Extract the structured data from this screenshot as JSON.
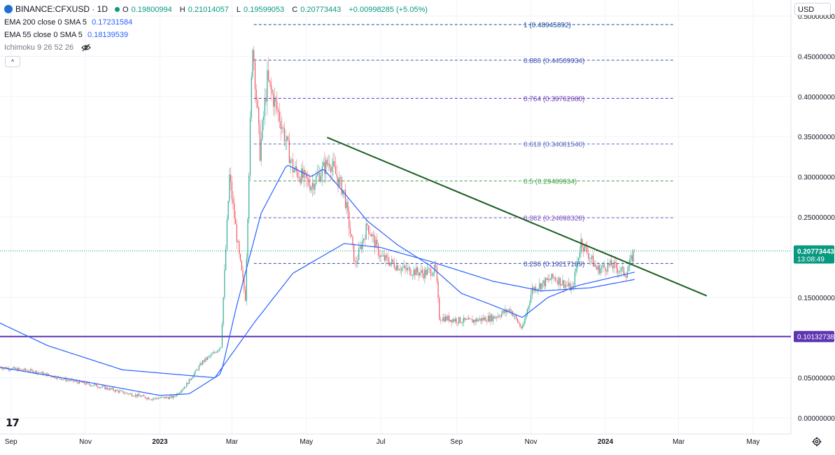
{
  "header": {
    "symbol": "BINANCE:CFXUSD · 1D",
    "open_label": "O",
    "open": "0.19800994",
    "high_label": "H",
    "high": "0.21014057",
    "low_label": "L",
    "low": "0.19599053",
    "close_label": "C",
    "close": "0.20773443",
    "change": "+0.00998285 (+5.05%)"
  },
  "indicators": [
    {
      "label": "EMA 200 close 0 SMA 5",
      "value": "0.17231584"
    },
    {
      "label": "EMA 55 close 0 SMA 5",
      "value": "0.18139539"
    },
    {
      "label": "Ichimoku 9 26 52 26",
      "value": ""
    }
  ],
  "toolbar": {
    "collapse_label": "^",
    "currency": "USD",
    "logo": "17"
  },
  "colors": {
    "up": "#089981",
    "down": "#f23645",
    "ma": "#2962ff",
    "trendline": "#1b5e20",
    "support": "#5e35b1",
    "axis_text": "#131722"
  },
  "chart_data": {
    "type": "candlestick",
    "symbol": "BINANCE:CFXUSD",
    "interval": "1D",
    "x_range": [
      "2022-08-23",
      "2024-06-01"
    ],
    "y_range": [
      -0.02,
      0.52
    ],
    "y_ticks": [
      "0.50000000",
      "0.45000000",
      "0.40000000",
      "0.35000000",
      "0.30000000",
      "0.25000000",
      "0.15000000",
      "0.05000000",
      "0.00000000"
    ],
    "y_tick_values": [
      0.5,
      0.45,
      0.4,
      0.35,
      0.3,
      0.25,
      0.15,
      0.05,
      0.0
    ],
    "x_ticks": [
      {
        "label": "Sep",
        "date": "2022-09-01"
      },
      {
        "label": "Nov",
        "date": "2022-11-01"
      },
      {
        "label": "2023",
        "date": "2023-01-01"
      },
      {
        "label": "Mar",
        "date": "2023-03-01"
      },
      {
        "label": "May",
        "date": "2023-05-01"
      },
      {
        "label": "Jul",
        "date": "2023-07-01"
      },
      {
        "label": "Sep",
        "date": "2023-09-01"
      },
      {
        "label": "Nov",
        "date": "2023-11-01"
      },
      {
        "label": "2024",
        "date": "2024-01-01"
      },
      {
        "label": "Mar",
        "date": "2024-03-01"
      },
      {
        "label": "May",
        "date": "2024-05-01"
      }
    ],
    "price_path": [
      [
        "2022-08-23",
        0.063
      ],
      [
        "2022-09-20",
        0.058
      ],
      [
        "2022-10-15",
        0.048
      ],
      [
        "2022-11-10",
        0.04
      ],
      [
        "2022-12-01",
        0.032
      ],
      [
        "2022-12-25",
        0.024
      ],
      [
        "2023-01-12",
        0.026
      ],
      [
        "2023-01-22",
        0.04
      ],
      [
        "2023-02-05",
        0.07
      ],
      [
        "2023-02-14",
        0.08
      ],
      [
        "2023-02-20",
        0.09
      ],
      [
        "2023-02-27",
        0.3
      ],
      [
        "2023-03-07",
        0.2
      ],
      [
        "2023-03-12",
        0.15
      ],
      [
        "2023-03-18",
        0.47
      ],
      [
        "2023-03-24",
        0.33
      ],
      [
        "2023-03-30",
        0.42
      ],
      [
        "2023-04-10",
        0.37
      ],
      [
        "2023-04-20",
        0.31
      ],
      [
        "2023-05-05",
        0.29
      ],
      [
        "2023-05-20",
        0.32
      ],
      [
        "2023-06-01",
        0.28
      ],
      [
        "2023-06-10",
        0.19
      ],
      [
        "2023-06-20",
        0.24
      ],
      [
        "2023-07-01",
        0.2
      ],
      [
        "2023-07-20",
        0.185
      ],
      [
        "2023-08-05",
        0.18
      ],
      [
        "2023-08-15",
        0.185
      ],
      [
        "2023-08-18",
        0.125
      ],
      [
        "2023-09-10",
        0.12
      ],
      [
        "2023-10-01",
        0.125
      ],
      [
        "2023-10-15",
        0.135
      ],
      [
        "2023-10-25",
        0.11
      ],
      [
        "2023-11-02",
        0.16
      ],
      [
        "2023-11-20",
        0.175
      ],
      [
        "2023-12-05",
        0.16
      ],
      [
        "2023-12-12",
        0.22
      ],
      [
        "2023-12-25",
        0.185
      ],
      [
        "2024-01-06",
        0.19
      ],
      [
        "2024-01-18",
        0.18
      ],
      [
        "2024-01-25",
        0.2077
      ]
    ],
    "ema55": [
      [
        "2022-08-23",
        0.063
      ],
      [
        "2022-11-01",
        0.045
      ],
      [
        "2023-01-01",
        0.028
      ],
      [
        "2023-01-25",
        0.03
      ],
      [
        "2023-02-20",
        0.055
      ],
      [
        "2023-03-05",
        0.14
      ],
      [
        "2023-03-25",
        0.255
      ],
      [
        "2023-04-15",
        0.315
      ],
      [
        "2023-05-05",
        0.3
      ],
      [
        "2023-05-15",
        0.31
      ],
      [
        "2023-06-01",
        0.28
      ],
      [
        "2023-06-20",
        0.245
      ],
      [
        "2023-07-15",
        0.215
      ],
      [
        "2023-08-10",
        0.19
      ],
      [
        "2023-09-05",
        0.155
      ],
      [
        "2023-10-01",
        0.14
      ],
      [
        "2023-10-25",
        0.125
      ],
      [
        "2023-11-15",
        0.15
      ],
      [
        "2023-12-10",
        0.165
      ],
      [
        "2024-01-25",
        0.1814
      ]
    ],
    "ema200": [
      [
        "2022-08-23",
        0.118
      ],
      [
        "2022-10-01",
        0.09
      ],
      [
        "2022-12-01",
        0.06
      ],
      [
        "2023-02-15",
        0.05
      ],
      [
        "2023-03-20",
        0.12
      ],
      [
        "2023-04-20",
        0.18
      ],
      [
        "2023-06-01",
        0.217
      ],
      [
        "2023-07-01",
        0.212
      ],
      [
        "2023-08-10",
        0.195
      ],
      [
        "2023-10-01",
        0.17
      ],
      [
        "2023-11-10",
        0.158
      ],
      [
        "2023-12-20",
        0.162
      ],
      [
        "2024-01-25",
        0.1723
      ]
    ],
    "fibonacci": [
      {
        "label": "1 (0.48945892)",
        "value": 0.48945892,
        "color": "#1e4fa0"
      },
      {
        "label": "0.886 (0.44509934)",
        "value": 0.44509934,
        "color": "#3f51b5"
      },
      {
        "label": "0.764 (0.39762680)",
        "value": 0.3976268,
        "color": "#673ab7"
      },
      {
        "label": "0.618 (0.34081540)",
        "value": 0.3408154,
        "color": "#5c6bc0"
      },
      {
        "label": "0.5 (0.29489934)",
        "value": 0.29489934,
        "color": "#43a047"
      },
      {
        "label": "0.382 (0.24898328)",
        "value": 0.24898328,
        "color": "#7e57c2"
      },
      {
        "label": "0.236 (0.19217189)",
        "value": 0.19217189,
        "color": "#3949ab"
      }
    ],
    "fib_start": "2023-03-19",
    "fib_end": "2024-02-26",
    "trendline": {
      "from": [
        "2023-05-18",
        0.349
      ],
      "to": [
        "2024-03-24",
        0.152
      ]
    },
    "support": {
      "value": 0.10132738,
      "label": "0.10132738"
    },
    "last_price": {
      "value": 0.20773443,
      "label": "0.20773443",
      "countdown": "13:08:49"
    }
  }
}
